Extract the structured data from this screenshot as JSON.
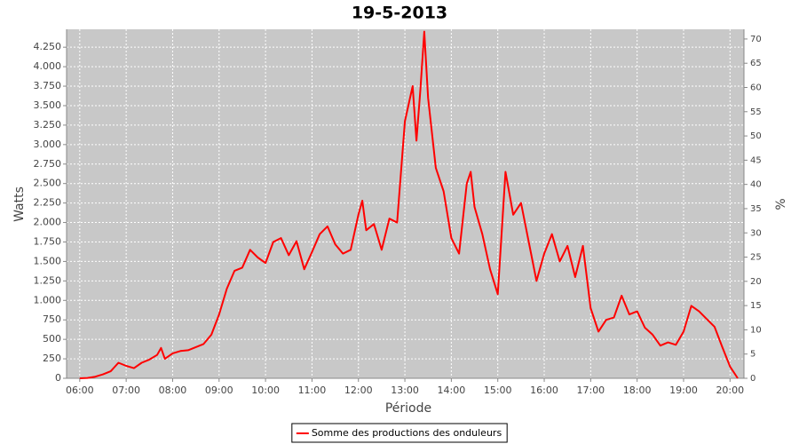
{
  "chart_data": {
    "type": "line",
    "title": "19-5-2013",
    "xlabel": "Période",
    "ylabel": "Watts",
    "y2label": "%",
    "x": [
      "06:00",
      "06:10",
      "06:20",
      "06:30",
      "06:40",
      "06:50",
      "07:00",
      "07:10",
      "07:20",
      "07:30",
      "07:40",
      "07:45",
      "07:50",
      "08:00",
      "08:10",
      "08:20",
      "08:30",
      "08:40",
      "08:50",
      "09:00",
      "09:10",
      "09:20",
      "09:30",
      "09:40",
      "09:50",
      "10:00",
      "10:10",
      "10:20",
      "10:30",
      "10:40",
      "10:50",
      "11:00",
      "11:10",
      "11:20",
      "11:30",
      "11:40",
      "11:50",
      "12:00",
      "12:05",
      "12:10",
      "12:20",
      "12:30",
      "12:40",
      "12:50",
      "13:00",
      "13:10",
      "13:15",
      "13:20",
      "13:25",
      "13:30",
      "13:40",
      "13:50",
      "14:00",
      "14:10",
      "14:20",
      "14:25",
      "14:30",
      "14:40",
      "14:50",
      "15:00",
      "15:10",
      "15:20",
      "15:30",
      "15:40",
      "15:50",
      "16:00",
      "16:10",
      "16:20",
      "16:30",
      "16:40",
      "16:50",
      "17:00",
      "17:10",
      "17:20",
      "17:30",
      "17:40",
      "17:50",
      "18:00",
      "18:10",
      "18:20",
      "18:30",
      "18:40",
      "18:50",
      "19:00",
      "19:10",
      "19:20",
      "19:30",
      "19:40",
      "19:50",
      "20:00",
      "20:10"
    ],
    "series": [
      {
        "name": "Somme des productions des onduleurs",
        "color": "#ff0000",
        "values": [
          0,
          5,
          20,
          50,
          90,
          200,
          160,
          130,
          200,
          240,
          300,
          390,
          250,
          320,
          350,
          360,
          400,
          440,
          560,
          820,
          1150,
          1380,
          1420,
          1650,
          1550,
          1480,
          1750,
          1800,
          1580,
          1760,
          1400,
          1620,
          1850,
          1950,
          1720,
          1600,
          1650,
          2100,
          2280,
          1900,
          1980,
          1650,
          2050,
          2000,
          3300,
          3750,
          3050,
          3700,
          4450,
          3600,
          2700,
          2400,
          1800,
          1600,
          2500,
          2650,
          2200,
          1850,
          1400,
          1080,
          2650,
          2100,
          2250,
          1750,
          1250,
          1600,
          1850,
          1500,
          1700,
          1300,
          1700,
          900,
          600,
          750,
          780,
          1060,
          820,
          860,
          650,
          560,
          420,
          460,
          430,
          600,
          930,
          860,
          760,
          660,
          400,
          150,
          0
        ]
      }
    ],
    "xlim": [
      "05:43",
      "20:18"
    ],
    "xticks": [
      "06:00",
      "07:00",
      "08:00",
      "09:00",
      "10:00",
      "11:00",
      "12:00",
      "13:00",
      "14:00",
      "15:00",
      "16:00",
      "17:00",
      "18:00",
      "19:00",
      "20:00"
    ],
    "ylim": [
      0,
      4480
    ],
    "yticks": [
      0,
      250,
      500,
      750,
      {
        "value": 1000,
        "label": "1.000"
      },
      {
        "value": 1250,
        "label": "1.250"
      },
      {
        "value": 1500,
        "label": "1.500"
      },
      {
        "value": 1750,
        "label": "1.750"
      },
      {
        "value": 2000,
        "label": "2.000"
      },
      {
        "value": 2250,
        "label": "2.250"
      },
      {
        "value": 2500,
        "label": "2.500"
      },
      {
        "value": 2750,
        "label": "2.750"
      },
      {
        "value": 3000,
        "label": "3.000"
      },
      {
        "value": 3250,
        "label": "3.250"
      },
      {
        "value": 3500,
        "label": "3.500"
      },
      {
        "value": 3750,
        "label": "3.750"
      },
      {
        "value": 4000,
        "label": "4.000"
      },
      {
        "value": 4250,
        "label": "4.250"
      }
    ],
    "y2lim": [
      0,
      72
    ],
    "y2ticks": [
      0,
      5,
      10,
      15,
      20,
      25,
      30,
      35,
      40,
      45,
      50,
      55,
      60,
      65,
      70
    ],
    "grid": true,
    "legend": "bottom"
  }
}
